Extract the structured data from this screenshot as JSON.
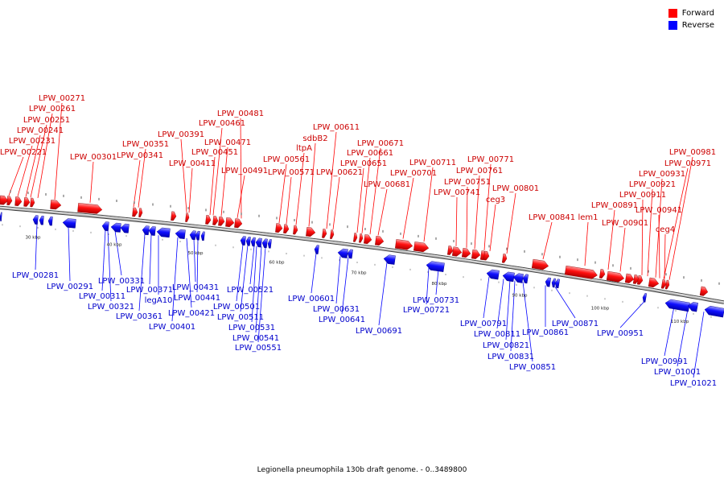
{
  "legend": {
    "forward_label": "Forward",
    "reverse_label": "Reverse",
    "forward_color": "#ff0000",
    "reverse_color": "#0000ff"
  },
  "caption": "Legionella pneumophila 130b draft genome. - 0..3489800",
  "scale_labels": [
    "30 kbp",
    "40 kbp",
    "50 kbp",
    "60 kbp",
    "70 kbp",
    "80 kbp",
    "90 kbp",
    "100 kbp",
    "110 kbp"
  ],
  "forward_labels": [
    "LPW_00271",
    "LPW_00261",
    "LPW_00251",
    "LPW_00241",
    "LPW_00231",
    "LPW_00221",
    "LPW_00301",
    "LPW_00351",
    "LPW_00341",
    "LPW_00391",
    "LPW_00411",
    "LPW_00481",
    "LPW_00461",
    "LPW_00471",
    "LPW_00451",
    "LPW_00491",
    "LPW_00561",
    "LPW_00571",
    "ltpA",
    "sdbB2",
    "LPW_00611",
    "LPW_00621",
    "LPW_00671",
    "LPW_00661",
    "LPW_00651",
    "LPW_00681",
    "LPW_00711",
    "LPW_00701",
    "LPW_00771",
    "LPW_00761",
    "LPW_00751",
    "LPW_00741",
    "ceg3",
    "LPW_00801",
    "LPW_00841",
    "lem1",
    "LPW_00891",
    "LPW_00901",
    "LPW_00981",
    "LPW_00971",
    "LPW_00931",
    "LPW_00921",
    "LPW_00911",
    "LPW_00941",
    "ceg4"
  ],
  "reverse_labels": [
    "LPW_00281",
    "LPW_00291",
    "LPW_00311",
    "LPW_00321",
    "LPW_00331",
    "LPW_00361",
    "LPW_00371",
    "legA10",
    "LPW_00401",
    "LPW_00421",
    "LPW_00431",
    "LPW_00441",
    "LPW_00501",
    "LPW_00511",
    "LPW_00521",
    "LPW_00531",
    "LPW_00541",
    "LPW_00551",
    "LPW_00601",
    "LPW_00631",
    "LPW_00641",
    "LPW_00691",
    "LPW_00731",
    "LPW_00721",
    "LPW_00791",
    "LPW_00811",
    "LPW_00821",
    "LPW_00831",
    "LPW_00851",
    "LPW_00861",
    "LPW_00871",
    "LPW_00951",
    "LPW_00991",
    "LPW_01001",
    "LPW_01021"
  ]
}
